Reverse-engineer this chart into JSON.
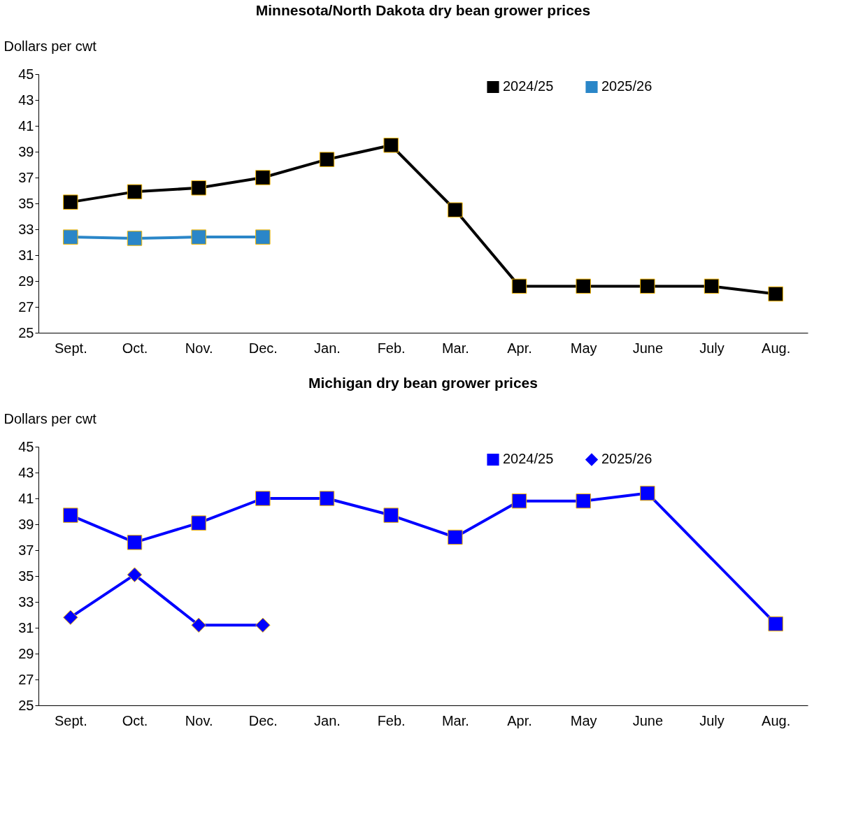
{
  "chart_data": [
    {
      "type": "line",
      "title": "Minnesota/North Dakota dry bean grower prices",
      "ylabel": "Dollars per cwt",
      "categories": [
        "Sept.",
        "Oct.",
        "Nov.",
        "Dec.",
        "Jan.",
        "Feb.",
        "Mar.",
        "Apr.",
        "May",
        "June",
        "July",
        "Aug."
      ],
      "series": [
        {
          "name": "2024/25",
          "color": "#000000",
          "marker": "square",
          "line_style": "solid",
          "values": [
            35.1,
            35.9,
            36.2,
            37.0,
            38.4,
            39.5,
            34.5,
            28.6,
            28.6,
            28.6,
            28.6,
            28.0
          ]
        },
        {
          "name": "2025/26",
          "color": "#2a86c8",
          "marker": "square",
          "line_style": "solid",
          "values": [
            32.4,
            32.3,
            32.4,
            32.4,
            null,
            null,
            null,
            null,
            null,
            null,
            null,
            null
          ]
        }
      ],
      "ylim": [
        25,
        45
      ],
      "yticks": [
        25,
        27,
        29,
        31,
        33,
        35,
        37,
        39,
        41,
        43,
        45
      ],
      "grid": false,
      "legend": "top right"
    },
    {
      "type": "line",
      "title": "Michigan dry bean grower prices",
      "ylabel": "Dollars per cwt",
      "categories": [
        "Sept.",
        "Oct.",
        "Nov.",
        "Dec.",
        "Jan.",
        "Feb.",
        "Mar.",
        "Apr.",
        "May",
        "June",
        "July",
        "Aug."
      ],
      "series": [
        {
          "name": "2024/25",
          "color": "#0000ff",
          "marker": "square",
          "line_style": "solid",
          "values": [
            39.7,
            37.6,
            39.1,
            41.0,
            41.0,
            39.7,
            38.0,
            40.8,
            40.8,
            41.4,
            null,
            31.3
          ]
        },
        {
          "name": "2025/26",
          "color": "#0000fe",
          "marker": "diamond",
          "line_style": "solid",
          "values": [
            31.8,
            35.1,
            31.2,
            31.2,
            null,
            null,
            null,
            null,
            null,
            null,
            null,
            null
          ]
        }
      ],
      "ylim": [
        25,
        45
      ],
      "yticks": [
        25,
        27,
        29,
        31,
        33,
        35,
        37,
        39,
        41,
        43,
        45
      ],
      "grid": false,
      "legend": "top right"
    }
  ]
}
